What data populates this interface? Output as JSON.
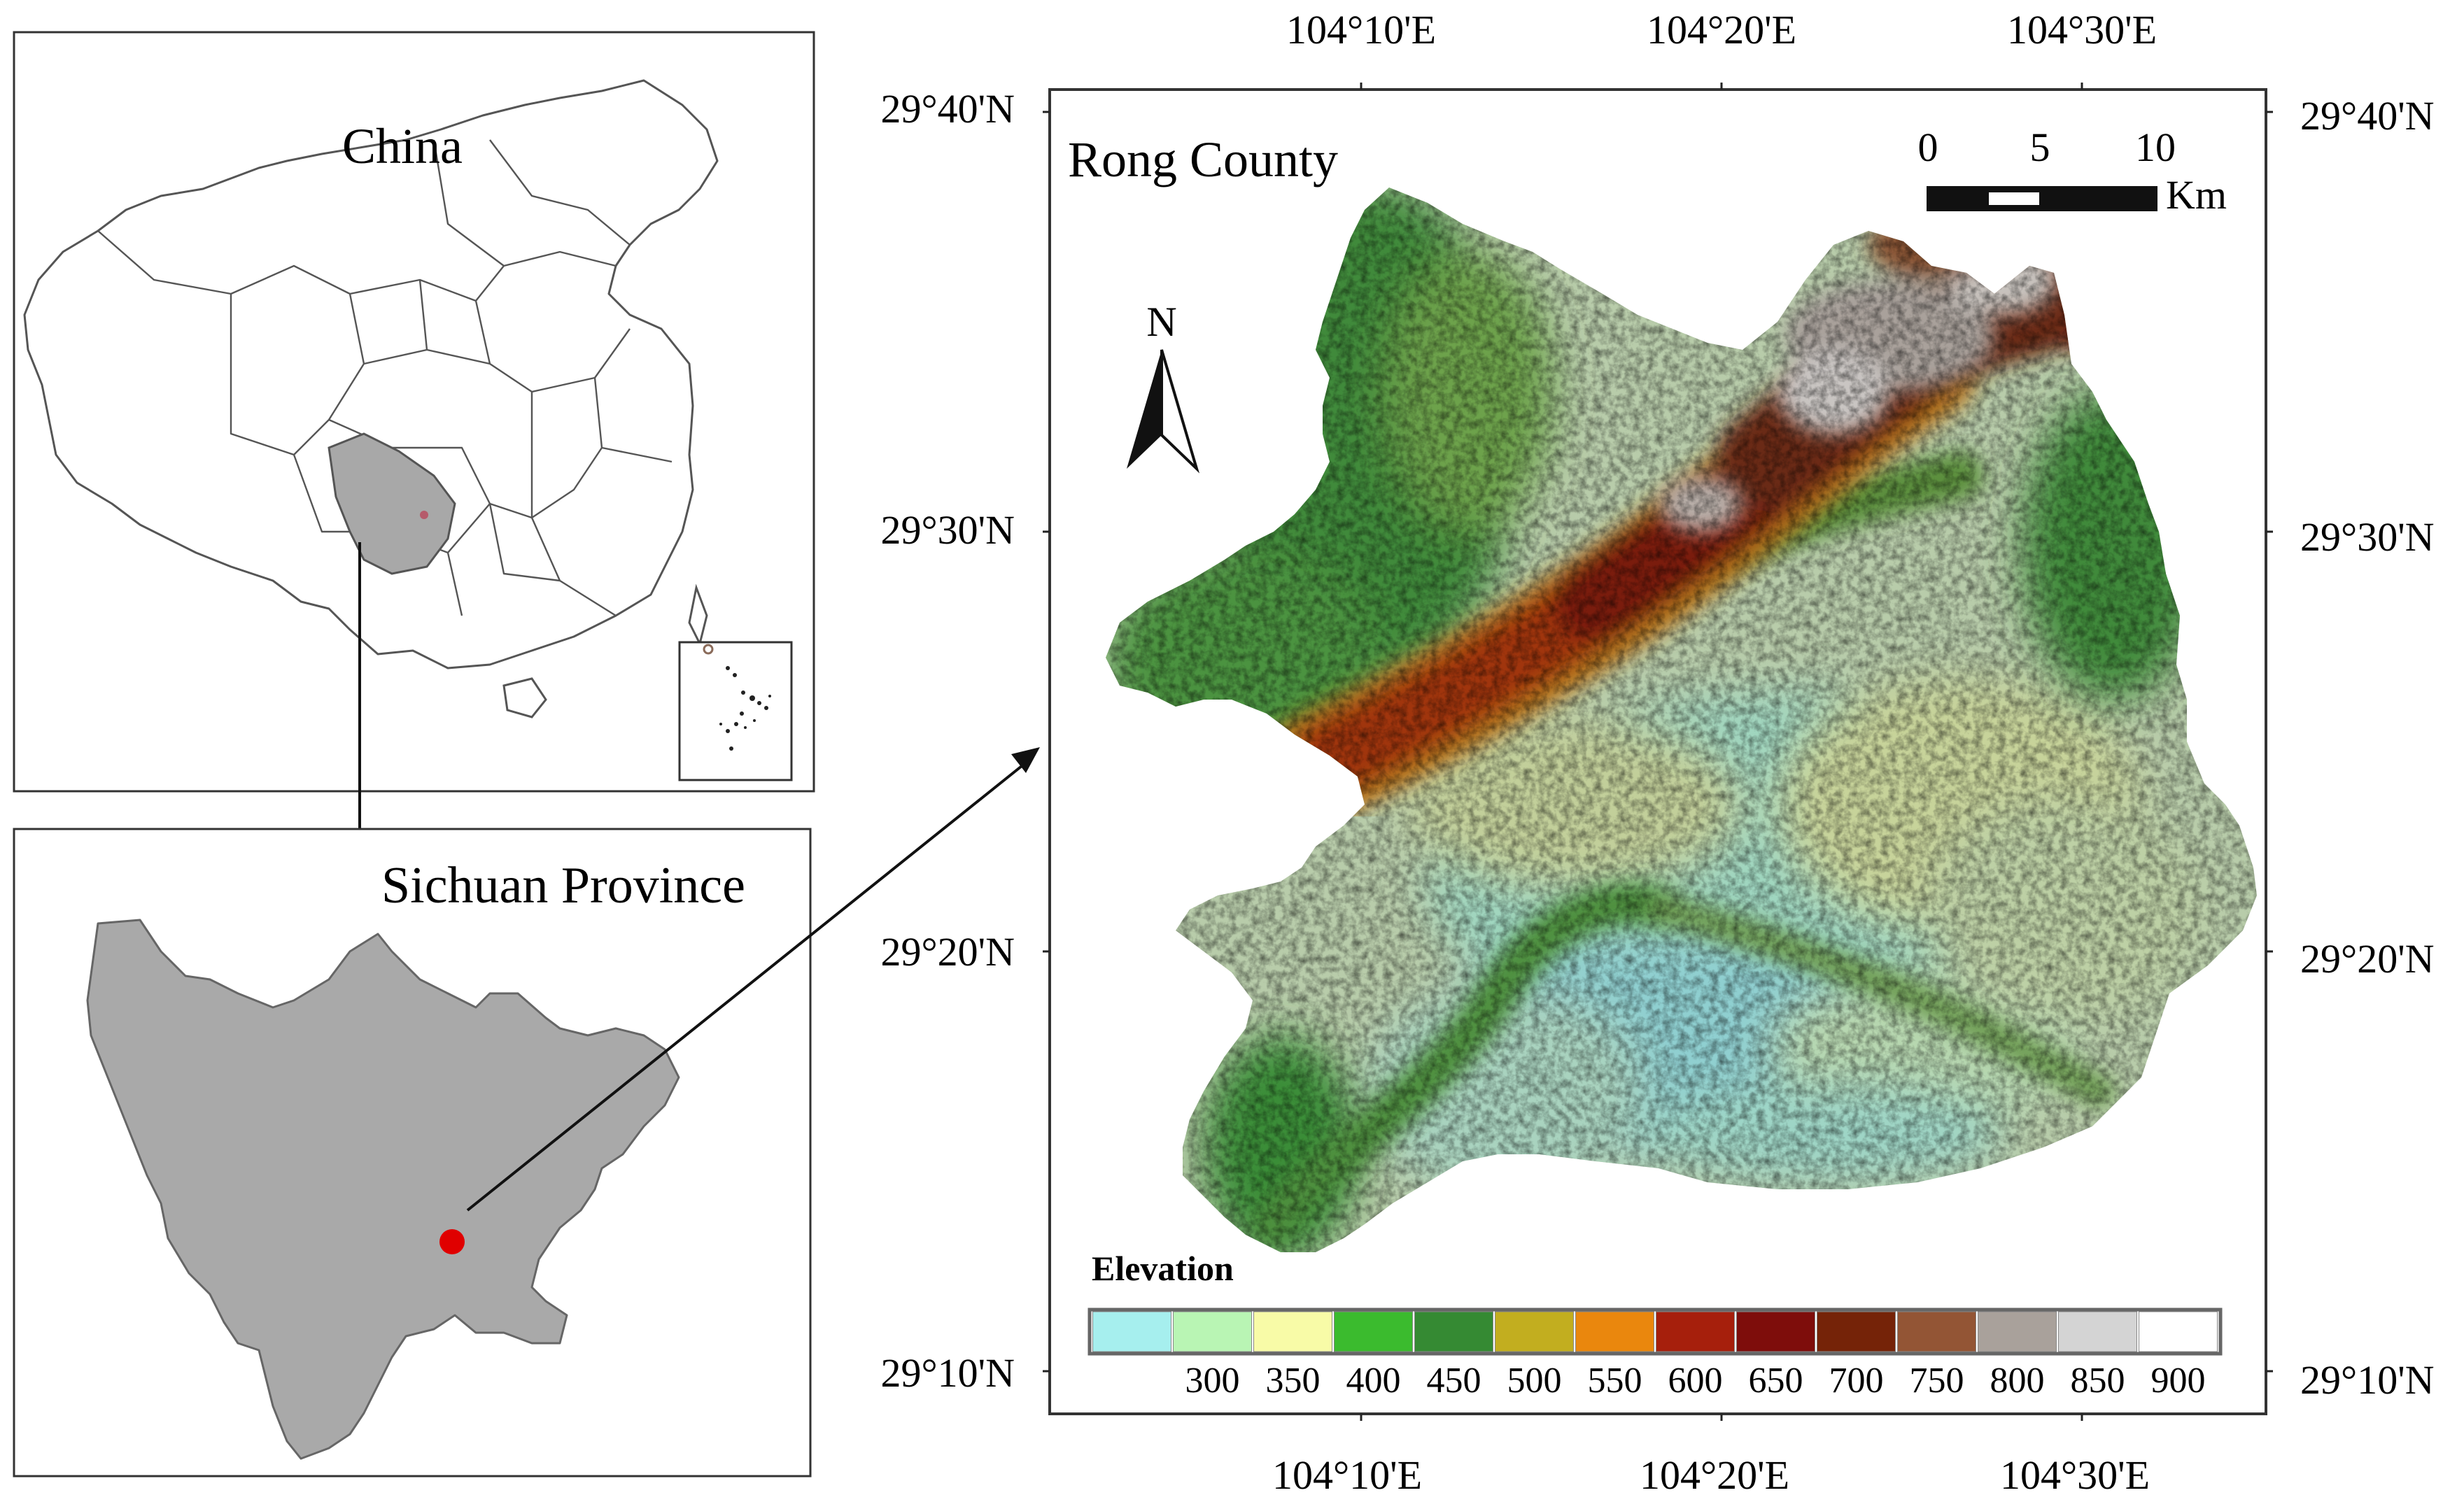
{
  "china_panel": {
    "title": "China"
  },
  "sichuan_panel": {
    "title": "Sichuan Province"
  },
  "county_map": {
    "title": "Rong County",
    "north_label": "N",
    "scale_bar": {
      "ticks": [
        "0",
        "5",
        "10"
      ],
      "unit": "Km"
    },
    "legend": {
      "title": "Elevation",
      "classes": [
        {
          "label": "",
          "color": "#a6efee"
        },
        {
          "label": "300",
          "color": "#b9f5b4"
        },
        {
          "label": "350",
          "color": "#f8fba7"
        },
        {
          "label": "400",
          "color": "#3bbb2e"
        },
        {
          "label": "450",
          "color": "#358a33"
        },
        {
          "label": "500",
          "color": "#c2ae1f"
        },
        {
          "label": "550",
          "color": "#ea870d"
        },
        {
          "label": "600",
          "color": "#a61f0c"
        },
        {
          "label": "650",
          "color": "#7e0d0b"
        },
        {
          "label": "700",
          "color": "#752308"
        },
        {
          "label": "750",
          "color": "#935535"
        },
        {
          "label": "800",
          "color": "#a9a19b"
        },
        {
          "label": "850",
          "color": "#d4d4d4"
        },
        {
          "label": "900",
          "color": "#ffffff"
        }
      ]
    },
    "lon_labels": [
      "104°10'E",
      "104°20'E",
      "104°30'E"
    ],
    "lat_labels": [
      "29°40'N",
      "29°30'N",
      "29°20'N",
      "29°10'N"
    ],
    "lon_values": [
      104.1667,
      104.3333,
      104.5
    ],
    "lat_values": [
      29.6667,
      29.5,
      29.3333,
      29.1667
    ]
  }
}
